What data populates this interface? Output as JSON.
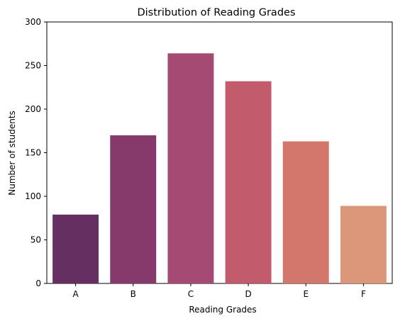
{
  "chart_data": {
    "type": "bar",
    "title": "Distribution of Reading Grades",
    "xlabel": "Reading Grades",
    "ylabel": "Number of students",
    "categories": [
      "A",
      "B",
      "C",
      "D",
      "E",
      "F"
    ],
    "values": [
      79,
      170,
      264,
      232,
      163,
      89
    ],
    "ylim": [
      0,
      300
    ],
    "yticks": [
      0,
      50,
      100,
      150,
      200,
      250,
      300
    ],
    "colors": [
      "#662f62",
      "#863a6b",
      "#a54a72",
      "#c25b6b",
      "#d3766b",
      "#dc977a"
    ],
    "grid": false,
    "legend": "none"
  }
}
